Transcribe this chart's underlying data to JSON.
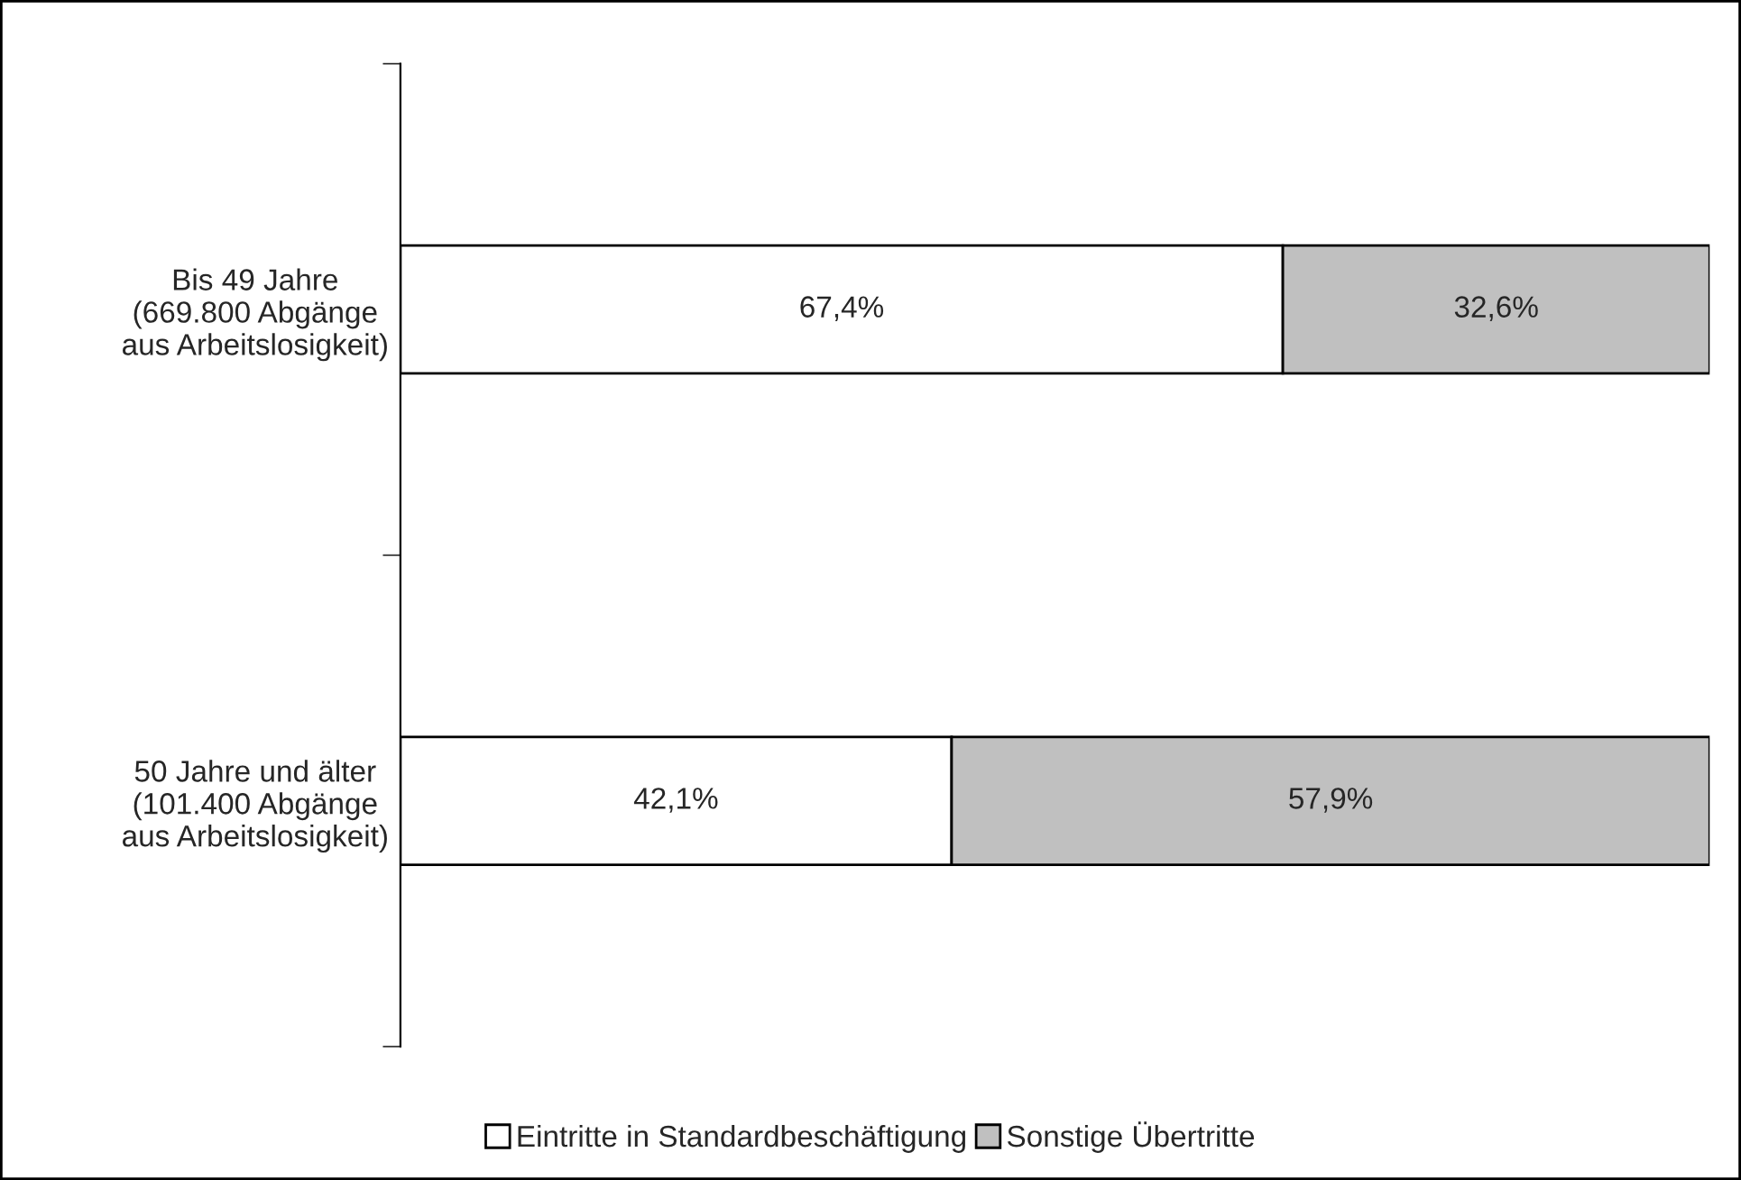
{
  "chart_data": {
    "type": "bar",
    "orientation": "horizontal",
    "stacked": true,
    "categories": [
      "Bis 49 Jahre\n(669.800 Abgänge\naus Arbeitslosigkeit)",
      "50 Jahre und älter\n(101.400 Abgänge\naus Arbeitslosigkeit)"
    ],
    "series": [
      {
        "name": "Eintritte in Standardbeschäftigung",
        "color": "#ffffff",
        "values": [
          67.4,
          42.1
        ],
        "value_labels": [
          "67,4%",
          "42,1%"
        ]
      },
      {
        "name": "Sonstige Übertritte",
        "color": "#c0c0c0",
        "values": [
          32.6,
          57.9
        ],
        "value_labels": [
          "32,6%",
          "57,9%"
        ]
      }
    ],
    "legend": "bottom",
    "grid": false
  }
}
